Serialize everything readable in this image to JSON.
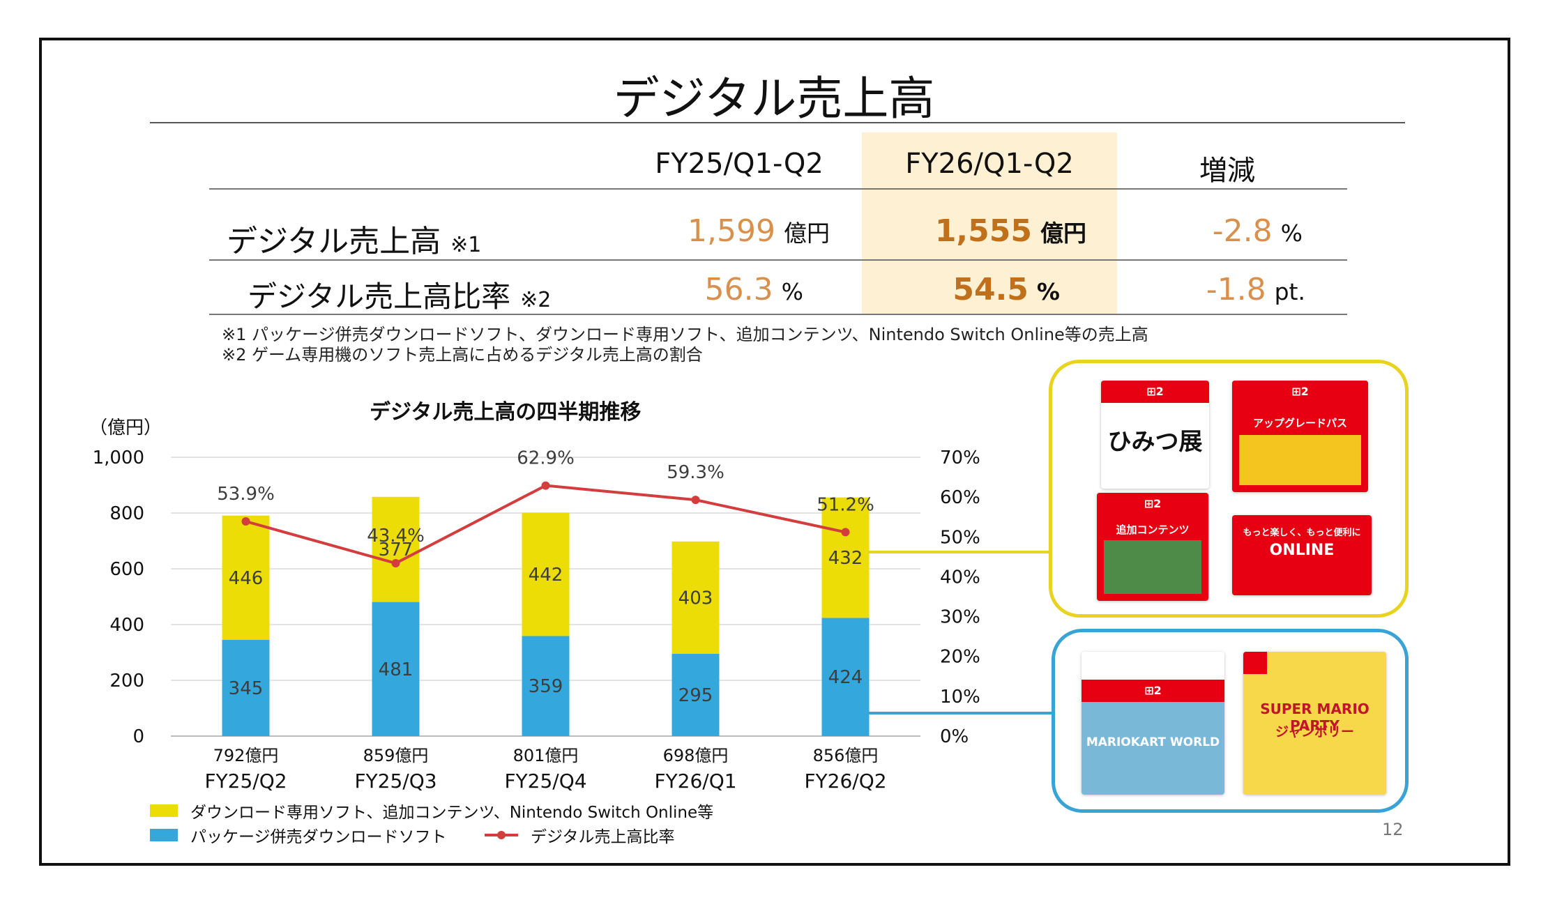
{
  "title": "デジタル売上高",
  "colors": {
    "yellow": "#ecdd06",
    "blue": "#34a8dc",
    "line": "#d33d3d",
    "highlight": "#fdf0d3",
    "value": "#d9904c",
    "panel_yellow": "#e8d320",
    "panel_blue": "#3aa3d6"
  },
  "table": {
    "headers": [
      "FY25/Q1-Q2",
      "FY26/Q1-Q2",
      "増減"
    ],
    "rows": [
      {
        "label": "デジタル売上高",
        "note": "※1",
        "fy25": "1,599",
        "fy25_unit": "億円",
        "fy26": "1,555",
        "fy26_unit": "億円",
        "diff": "-2.8",
        "diff_unit": "%"
      },
      {
        "label": "デジタル売上高比率",
        "note": "※2",
        "fy25": "56.3",
        "fy25_unit": "%",
        "fy26": "54.5",
        "fy26_unit": "%",
        "diff": "-1.8",
        "diff_unit": "pt."
      }
    ]
  },
  "footnotes": [
    "※1 パッケージ併売ダウンロードソフト、ダウンロード専用ソフト、追加コンテンツ、Nintendo Switch Online等の売上高",
    "※2 ゲーム専用機のソフト売上高に占めるデジタル売上高の割合"
  ],
  "chart_data": {
    "type": "bar",
    "title": "デジタル売上高の四半期推移",
    "unit_label": "（億円）",
    "categories": [
      "FY25/Q2",
      "FY25/Q3",
      "FY25/Q4",
      "FY26/Q1",
      "FY26/Q2"
    ],
    "totals": [
      "792億円",
      "859億円",
      "801億円",
      "698億円",
      "856億円"
    ],
    "series": [
      {
        "name": "パッケージ併売ダウンロードソフト",
        "values": [
          345,
          481,
          359,
          295,
          424
        ],
        "color": "#34a8dc"
      },
      {
        "name": "ダウンロード専用ソフト、追加コンテンツ、Nintendo Switch Online等",
        "values": [
          446,
          377,
          442,
          403,
          432
        ],
        "color": "#ecdd06"
      }
    ],
    "ratio_series": {
      "name": "デジタル売上高比率",
      "values": [
        53.9,
        43.4,
        62.9,
        59.3,
        51.2
      ],
      "labels": [
        "53.9%",
        "43.4%",
        "62.9%",
        "59.3%",
        "51.2%"
      ],
      "color": "#d33d3d"
    },
    "ylim": [
      0,
      1000
    ],
    "y_ticks": [
      "0",
      "200",
      "400",
      "600",
      "800",
      "1,000"
    ],
    "y2lim": [
      0,
      70
    ],
    "y2_ticks": [
      "0%",
      "10%",
      "20%",
      "30%",
      "40%",
      "50%",
      "60%",
      "70%"
    ],
    "grid": true
  },
  "legend": {
    "yellow": "ダウンロード専用ソフト、追加コンテンツ、Nintendo Switch Online等",
    "blue": "パッケージ併売ダウンロードソフト",
    "line": "デジタル売上高比率"
  },
  "product_images": {
    "digital_only": [
      "NINTENDO SWITCH 2 のひみつ展",
      "Nintendo Switch 2 Edition アップグレードパス",
      "追加コンテンツ",
      "もっと楽しく、もっと便利に ONLINE"
    ],
    "package_bundled": [
      "MARIOKART WORLD",
      "SUPER MARIO PARTY ジャンボリー"
    ]
  },
  "page_number": "12"
}
